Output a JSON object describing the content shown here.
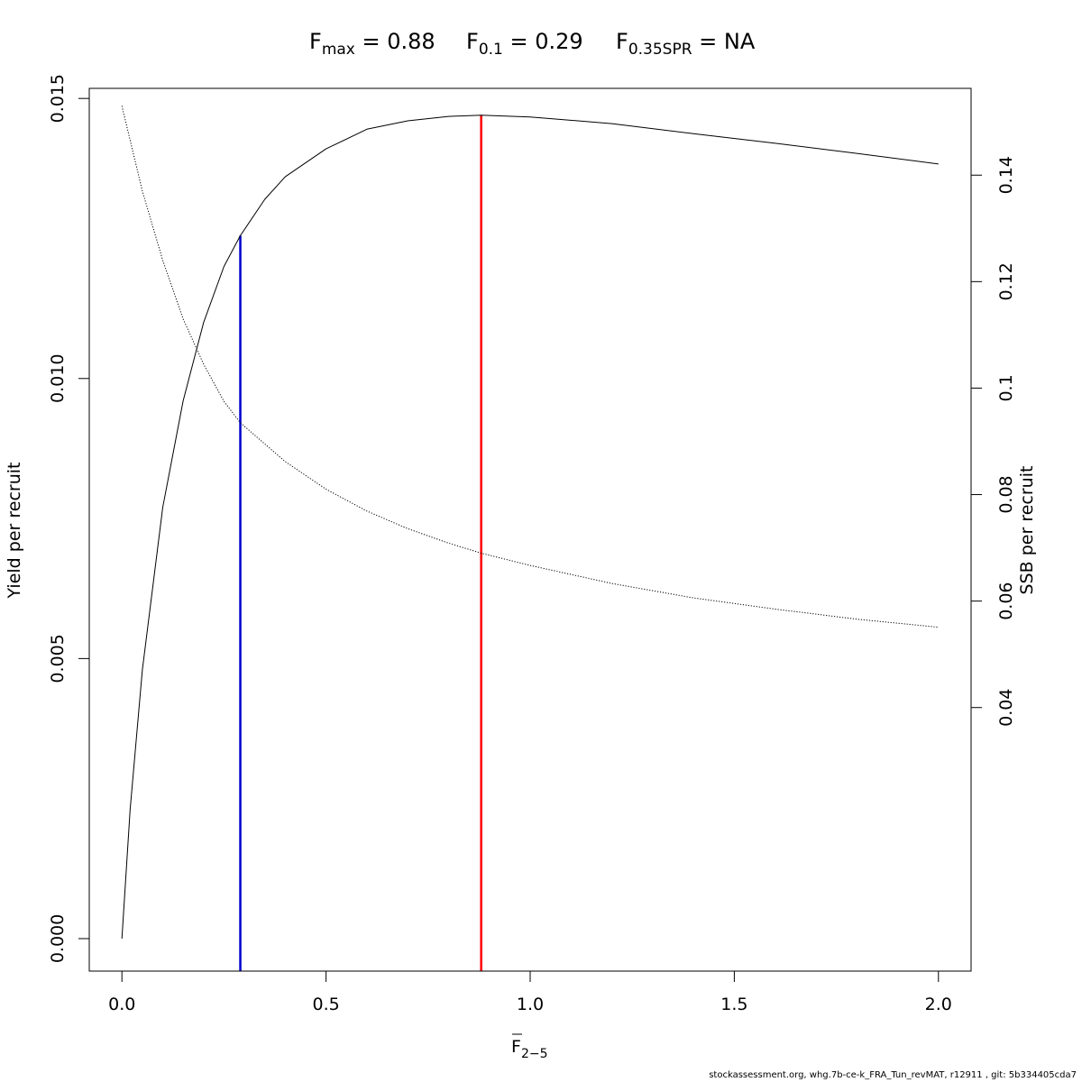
{
  "title": {
    "fmax_sym": "F",
    "fmax_sub": "max",
    "fmax_val": " = 0.88",
    "f01_sym": "F",
    "f01_sub": "0.1",
    "f01_val": " = 0.29",
    "fspr_sym": "F",
    "fspr_sub": "0.35SPR",
    "fspr_val": " = NA"
  },
  "footer": "stockassessment.org, whg.7b-ce-k_FRA_Tun_revMAT, r12911 , git: 5b334405cda7",
  "chart_data": {
    "type": "line",
    "xlabel_main": "F",
    "xlabel_sub": "2−5",
    "ylabel": "Yield per recruit",
    "y2label": "SSB per recruit",
    "xlim": [
      -0.08,
      2.08
    ],
    "ylim": [
      -0.00058,
      0.01518
    ],
    "y2lim": [
      -0.0095,
      0.1563
    ],
    "x_ticks": [
      "0.0",
      "0.5",
      "1.0",
      "1.5",
      "2.0"
    ],
    "y_ticks": [
      "0.000",
      "0.005",
      "0.010",
      "0.015"
    ],
    "y2_ticks": [
      "0.04",
      "0.06",
      "0.08",
      "0.1",
      "0.12",
      "0.14"
    ],
    "series": [
      {
        "name": "",
        "axis": "left",
        "style": "solid",
        "color": "#000000",
        "x": [
          0,
          0.02,
          0.05,
          0.1,
          0.15,
          0.2,
          0.25,
          0.29,
          0.35,
          0.4,
          0.5,
          0.6,
          0.7,
          0.8,
          0.88,
          1.0,
          1.2,
          1.4,
          1.6,
          1.8,
          2.0
        ],
        "y": [
          0,
          0.0023,
          0.0048,
          0.0077,
          0.0096,
          0.011,
          0.012,
          0.01255,
          0.0132,
          0.0136,
          0.0141,
          0.01445,
          0.0146,
          0.01468,
          0.0147,
          0.01467,
          0.01455,
          0.01437,
          0.0142,
          0.01402,
          0.01383
        ]
      },
      {
        "name": "",
        "axis": "right",
        "style": "dotted",
        "color": "#000000",
        "x": [
          0,
          0.05,
          0.1,
          0.15,
          0.2,
          0.25,
          0.29,
          0.35,
          0.4,
          0.5,
          0.6,
          0.7,
          0.8,
          0.88,
          1.0,
          1.2,
          1.4,
          1.6,
          1.8,
          2.0
        ],
        "y": [
          0.153,
          0.137,
          0.124,
          0.113,
          0.1045,
          0.0975,
          0.0935,
          0.0895,
          0.0862,
          0.081,
          0.0769,
          0.0736,
          0.0709,
          0.069,
          0.0667,
          0.0633,
          0.0606,
          0.0585,
          0.0566,
          0.0551
        ]
      }
    ],
    "reference_lines": [
      {
        "name": "F0.1",
        "x": 0.29,
        "y_top": 0.01255,
        "color": "#0000cc"
      },
      {
        "name": "Fmax",
        "x": 0.88,
        "y_top": 0.0147,
        "color": "#ff0000"
      }
    ]
  }
}
